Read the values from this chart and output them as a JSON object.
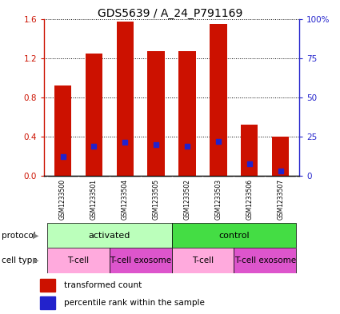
{
  "title": "GDS5639 / A_24_P791169",
  "samples": [
    "GSM1233500",
    "GSM1233501",
    "GSM1233504",
    "GSM1233505",
    "GSM1233502",
    "GSM1233503",
    "GSM1233506",
    "GSM1233507"
  ],
  "red_values": [
    0.92,
    1.25,
    1.57,
    1.27,
    1.27,
    1.55,
    0.52,
    0.4
  ],
  "blue_values": [
    0.2,
    0.3,
    0.34,
    0.32,
    0.3,
    0.35,
    0.12,
    0.05
  ],
  "ylim_left": [
    0,
    1.6
  ],
  "ylim_right": [
    0,
    100
  ],
  "yticks_left": [
    0,
    0.4,
    0.8,
    1.2,
    1.6
  ],
  "yticks_right": [
    0,
    25,
    50,
    75,
    100
  ],
  "ytick_labels_right": [
    "0",
    "25",
    "50",
    "75",
    "100%"
  ],
  "bar_color": "#cc1100",
  "blue_color": "#2222cc",
  "protocol_groups": [
    {
      "label": "activated",
      "start": 0,
      "end": 3,
      "color": "#bbffbb"
    },
    {
      "label": "control",
      "start": 4,
      "end": 7,
      "color": "#44dd44"
    }
  ],
  "cell_type_groups": [
    {
      "label": "T-cell",
      "start": 0,
      "end": 1,
      "color": "#ffaadd"
    },
    {
      "label": "T-cell exosome",
      "start": 2,
      "end": 3,
      "color": "#dd55cc"
    },
    {
      "label": "T-cell",
      "start": 4,
      "end": 5,
      "color": "#ffaadd"
    },
    {
      "label": "T-cell exosome",
      "start": 6,
      "end": 7,
      "color": "#dd55cc"
    }
  ],
  "legend_red_label": "transformed count",
  "legend_blue_label": "percentile rank within the sample",
  "protocol_label": "protocol",
  "cell_type_label": "cell type",
  "bar_width": 0.55,
  "tick_color_left": "#cc1100",
  "tick_color_right": "#2222cc",
  "title_fontsize": 10,
  "gray_bg": "#c8c8c8",
  "white_sep": "#ffffff"
}
